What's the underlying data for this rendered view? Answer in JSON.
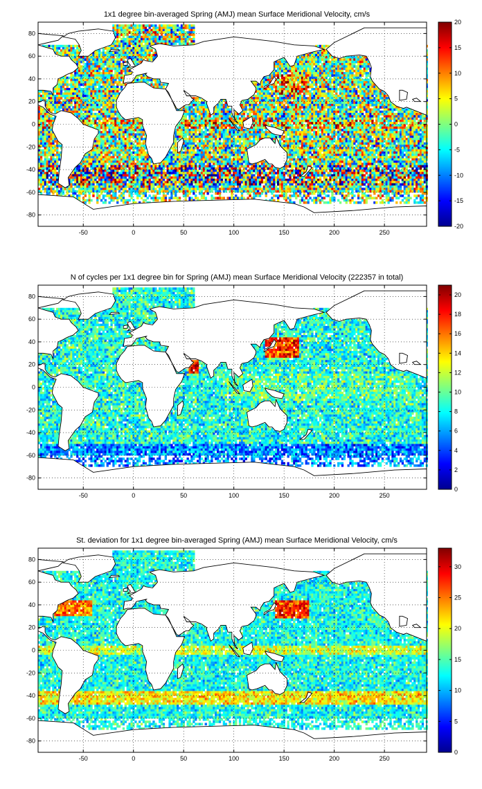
{
  "chart_data": [
    {
      "type": "heatmap",
      "title": "1x1 degree bin-averaged Spring (AMJ) mean Surface Meridional Velocity, cm/s",
      "xlabel": "",
      "ylabel": "",
      "xlim": [
        -95,
        292
      ],
      "ylim": [
        -90,
        90
      ],
      "xticks": [
        "-50",
        "0",
        "50",
        "100",
        "150",
        "200",
        "250"
      ],
      "yticks": [
        "80",
        "60",
        "40",
        "20",
        "0",
        "-20",
        "-40",
        "-60",
        "-80"
      ],
      "grid": true,
      "colormap": "jet",
      "clim": [
        -20,
        20
      ],
      "colorbar_ticks": [
        "20",
        "15",
        "10",
        "5",
        "0",
        "-5",
        "-10",
        "-15",
        "-20"
      ]
    },
    {
      "type": "heatmap",
      "title": "N of cycles per 1x1 degree bin for Spring (AMJ) mean Surface Meridional Velocity (222357 in total)",
      "xlabel": "",
      "ylabel": "",
      "xlim": [
        -95,
        292
      ],
      "ylim": [
        -90,
        90
      ],
      "xticks": [
        "-50",
        "0",
        "50",
        "100",
        "150",
        "200",
        "250"
      ],
      "yticks": [
        "80",
        "60",
        "40",
        "20",
        "0",
        "-20",
        "-40",
        "-60",
        "-80"
      ],
      "grid": true,
      "colormap": "jet",
      "clim": [
        0,
        21
      ],
      "colorbar_ticks": [
        "20",
        "18",
        "16",
        "14",
        "12",
        "10",
        "8",
        "6",
        "4",
        "2",
        "0"
      ]
    },
    {
      "type": "heatmap",
      "title": "St. deviation for 1x1 degree bin-averaged Spring (AMJ) mean Surface Meridional Velocity, cm/s",
      "xlabel": "",
      "ylabel": "",
      "xlim": [
        -95,
        292
      ],
      "ylim": [
        -90,
        90
      ],
      "xticks": [
        "-50",
        "0",
        "50",
        "100",
        "150",
        "200",
        "250"
      ],
      "yticks": [
        "80",
        "60",
        "40",
        "20",
        "0",
        "-20",
        "-40",
        "-60",
        "-80"
      ],
      "grid": true,
      "colormap": "jet",
      "clim": [
        0,
        33
      ],
      "colorbar_ticks": [
        "30",
        "25",
        "20",
        "15",
        "10",
        "5",
        "0"
      ]
    }
  ]
}
